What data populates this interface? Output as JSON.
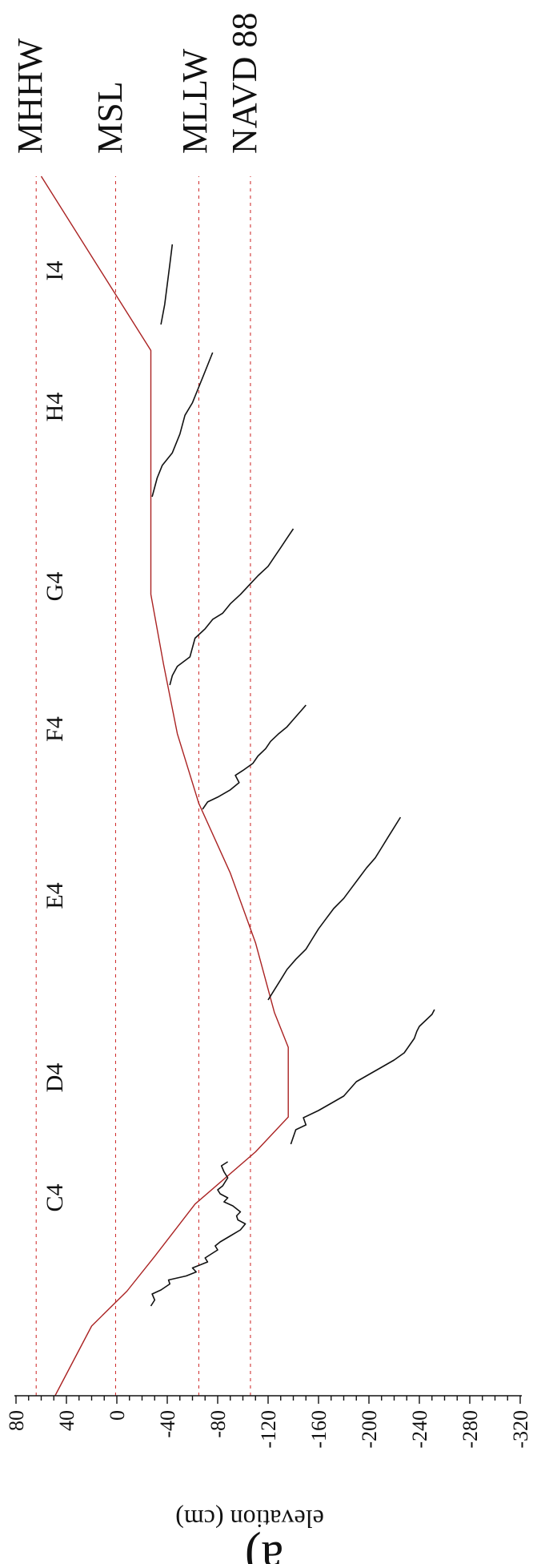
{
  "chart_data": {
    "type": "line",
    "panel_label": "a)",
    "orientation": "rotated 90° clockwise (elevation axis runs horizontally, reversed: 80 at left, -320 at right)",
    "ylabel": "elevation (cm)",
    "ylim": [
      -320,
      80
    ],
    "yticks": [
      "80",
      "40",
      "0",
      "-40",
      "-80",
      "-120",
      "-160",
      "-200",
      "-240",
      "-280",
      "-320"
    ],
    "tick_values": [
      80,
      40,
      0,
      -40,
      -80,
      -120,
      -160,
      -200,
      -240,
      -280,
      -320
    ],
    "reference_lines": [
      {
        "name": "MHHW",
        "value": 64,
        "color": "#cc2222"
      },
      {
        "name": "MSL",
        "value": 1,
        "color": "#cc2222"
      },
      {
        "name": "MLLW",
        "value": -65,
        "color": "#cc2222"
      },
      {
        "name": "NAVD 88",
        "value": -106,
        "color": "#cc2222"
      }
    ],
    "transect_labels": [
      "C4",
      "D4",
      "E4",
      "F4",
      "G4",
      "H4",
      "I4"
    ],
    "datum_curve": {
      "color": "#aa2222",
      "points": [
        [
          0,
          49
        ],
        [
          2,
          20
        ],
        [
          3,
          -8
        ],
        [
          4,
          -30
        ],
        [
          5.5,
          -62
        ],
        [
          7,
          -110
        ],
        [
          8,
          -136
        ],
        [
          10,
          -136
        ],
        [
          11,
          -125
        ],
        [
          13,
          -110
        ],
        [
          15,
          -90
        ],
        [
          17,
          -65
        ],
        [
          19,
          -48
        ],
        [
          21,
          -37
        ],
        [
          23,
          -27
        ],
        [
          25,
          -27
        ],
        [
          28,
          -27
        ],
        [
          30,
          -27
        ],
        [
          35,
          60
        ]
      ]
    },
    "grid": false
  }
}
